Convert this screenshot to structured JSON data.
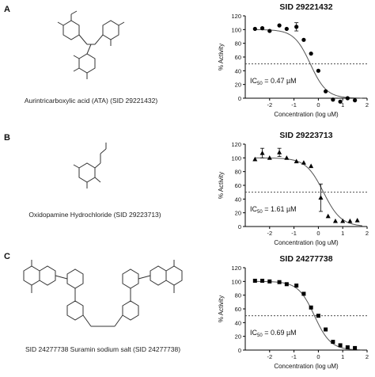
{
  "panels": [
    {
      "letter": "A",
      "compound": "Aurintricarboxylic acid (ATA) (SID 29221432)",
      "chart_title": "SID 29221432",
      "ic50_label": "IC",
      "ic50_sub": "50",
      "ic50_value": " = 0.47 µM"
    },
    {
      "letter": "B",
      "compound": "Oxidopamine Hydrochloride (SID 29223713)",
      "chart_title": "SID 29223713",
      "ic50_label": "IC",
      "ic50_sub": "50",
      "ic50_value": " = 1.61 µM"
    },
    {
      "letter": "C",
      "compound": "SID 24277738 Suramin sodium salt (SID 24277738)",
      "chart_title": "SID 24277738",
      "ic50_label": "IC",
      "ic50_sub": "50",
      "ic50_value": " = 0.69 µM"
    }
  ],
  "chart_data": [
    {
      "type": "scatter",
      "title": "SID 29221432",
      "xlabel": "Concentration (log uM)",
      "ylabel": "% Activity",
      "xlim": [
        -3,
        2
      ],
      "ylim": [
        0,
        120
      ],
      "xticks": [
        -2,
        -1,
        0,
        1,
        2
      ],
      "yticks": [
        0,
        20,
        40,
        60,
        80,
        100,
        120
      ],
      "marker": "circle",
      "reference_line_y": 50,
      "fit": {
        "top": 100,
        "bottom": 0,
        "logIC50": -0.33,
        "hill": 1.3
      },
      "points": [
        {
          "x": -2.6,
          "y": 101
        },
        {
          "x": -2.3,
          "y": 102
        },
        {
          "x": -2.0,
          "y": 98
        },
        {
          "x": -1.6,
          "y": 106
        },
        {
          "x": -1.3,
          "y": 101
        },
        {
          "x": -0.9,
          "y": 104,
          "err": 6
        },
        {
          "x": -0.6,
          "y": 85
        },
        {
          "x": -0.3,
          "y": 65
        },
        {
          "x": 0.0,
          "y": 40
        },
        {
          "x": 0.3,
          "y": 10
        },
        {
          "x": 0.6,
          "y": -2
        },
        {
          "x": 0.9,
          "y": -5
        },
        {
          "x": 1.2,
          "y": 0
        },
        {
          "x": 1.5,
          "y": -3
        }
      ]
    },
    {
      "type": "scatter",
      "title": "SID 29223713",
      "xlabel": "Concentration (log uM)",
      "ylabel": "% Activity",
      "xlim": [
        -3,
        2
      ],
      "ylim": [
        0,
        120
      ],
      "xticks": [
        -2,
        -1,
        0,
        1,
        2
      ],
      "yticks": [
        0,
        20,
        40,
        60,
        80,
        100,
        120
      ],
      "marker": "triangle",
      "reference_line_y": 50,
      "fit": {
        "top": 100,
        "bottom": 0,
        "logIC50": 0.21,
        "hill": 1.2
      },
      "points": [
        {
          "x": -2.6,
          "y": 98
        },
        {
          "x": -2.3,
          "y": 107,
          "err": 7
        },
        {
          "x": -2.0,
          "y": 100
        },
        {
          "x": -1.6,
          "y": 108,
          "err": 6
        },
        {
          "x": -1.3,
          "y": 100
        },
        {
          "x": -0.9,
          "y": 95
        },
        {
          "x": -0.6,
          "y": 93
        },
        {
          "x": -0.3,
          "y": 88
        },
        {
          "x": 0.1,
          "y": 42,
          "err": 20
        },
        {
          "x": 0.4,
          "y": 15
        },
        {
          "x": 0.7,
          "y": 8
        },
        {
          "x": 1.0,
          "y": 8
        },
        {
          "x": 1.3,
          "y": 8
        },
        {
          "x": 1.6,
          "y": 9
        }
      ]
    },
    {
      "type": "scatter",
      "title": "SID 24277738",
      "xlabel": "Concentration (log uM)",
      "ylabel": "% Activity",
      "xlim": [
        -3,
        2
      ],
      "ylim": [
        0,
        120
      ],
      "xticks": [
        -2,
        -1,
        0,
        1,
        2
      ],
      "yticks": [
        0,
        20,
        40,
        60,
        80,
        100,
        120
      ],
      "marker": "square",
      "reference_line_y": 50,
      "fit": {
        "top": 100,
        "bottom": 0,
        "logIC50": -0.16,
        "hill": 1.3
      },
      "points": [
        {
          "x": -2.6,
          "y": 101
        },
        {
          "x": -2.3,
          "y": 101
        },
        {
          "x": -2.0,
          "y": 100
        },
        {
          "x": -1.6,
          "y": 99
        },
        {
          "x": -1.3,
          "y": 96
        },
        {
          "x": -0.9,
          "y": 94
        },
        {
          "x": -0.6,
          "y": 82
        },
        {
          "x": -0.3,
          "y": 62
        },
        {
          "x": 0.0,
          "y": 50
        },
        {
          "x": 0.3,
          "y": 30
        },
        {
          "x": 0.6,
          "y": 12
        },
        {
          "x": 0.9,
          "y": 7
        },
        {
          "x": 1.2,
          "y": 4
        },
        {
          "x": 1.5,
          "y": 3
        }
      ]
    }
  ]
}
